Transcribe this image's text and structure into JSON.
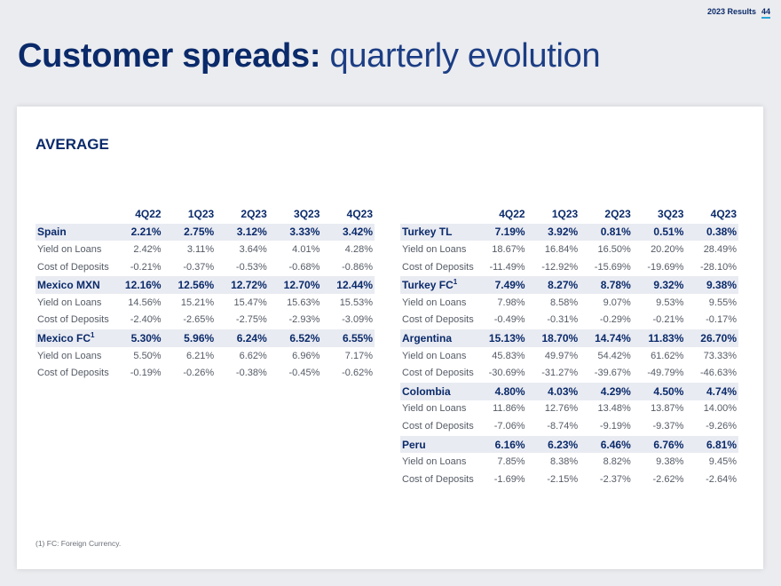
{
  "header": {
    "label": "2023 Results",
    "page": "44"
  },
  "title": {
    "bold": "Customer spreads:",
    "light": "quarterly evolution"
  },
  "section": "AVERAGE",
  "columns": [
    "4Q22",
    "1Q23",
    "2Q23",
    "3Q23",
    "4Q23"
  ],
  "left": [
    {
      "name": "Spain",
      "sup": "",
      "values": [
        "2.21%",
        "2.75%",
        "3.12%",
        "3.33%",
        "3.42%"
      ],
      "rows": [
        {
          "label": "Yield on Loans",
          "values": [
            "2.42%",
            "3.11%",
            "3.64%",
            "4.01%",
            "4.28%"
          ]
        },
        {
          "label": "Cost of Deposits",
          "values": [
            "-0.21%",
            "-0.37%",
            "-0.53%",
            "-0.68%",
            "-0.86%"
          ]
        }
      ]
    },
    {
      "name": "Mexico MXN",
      "sup": "",
      "values": [
        "12.16%",
        "12.56%",
        "12.72%",
        "12.70%",
        "12.44%"
      ],
      "rows": [
        {
          "label": "Yield on Loans",
          "values": [
            "14.56%",
            "15.21%",
            "15.47%",
            "15.63%",
            "15.53%"
          ]
        },
        {
          "label": "Cost of Deposits",
          "values": [
            "-2.40%",
            "-2.65%",
            "-2.75%",
            "-2.93%",
            "-3.09%"
          ]
        }
      ]
    },
    {
      "name": "Mexico FC",
      "sup": "1",
      "values": [
        "5.30%",
        "5.96%",
        "6.24%",
        "6.52%",
        "6.55%"
      ],
      "rows": [
        {
          "label": "Yield on Loans",
          "values": [
            "5.50%",
            "6.21%",
            "6.62%",
            "6.96%",
            "7.17%"
          ]
        },
        {
          "label": "Cost of Deposits",
          "values": [
            "-0.19%",
            "-0.26%",
            "-0.38%",
            "-0.45%",
            "-0.62%"
          ]
        }
      ]
    }
  ],
  "right": [
    {
      "name": "Turkey TL",
      "sup": "",
      "values": [
        "7.19%",
        "3.92%",
        "0.81%",
        "0.51%",
        "0.38%"
      ],
      "rows": [
        {
          "label": "Yield on Loans",
          "values": [
            "18.67%",
            "16.84%",
            "16.50%",
            "20.20%",
            "28.49%"
          ]
        },
        {
          "label": "Cost of Deposits",
          "values": [
            "-11.49%",
            "-12.92%",
            "-15.69%",
            "-19.69%",
            "-28.10%"
          ]
        }
      ]
    },
    {
      "name": "Turkey FC",
      "sup": "1",
      "values": [
        "7.49%",
        "8.27%",
        "8.78%",
        "9.32%",
        "9.38%"
      ],
      "rows": [
        {
          "label": "Yield on Loans",
          "values": [
            "7.98%",
            "8.58%",
            "9.07%",
            "9.53%",
            "9.55%"
          ]
        },
        {
          "label": "Cost of Deposits",
          "values": [
            "-0.49%",
            "-0.31%",
            "-0.29%",
            "-0.21%",
            "-0.17%"
          ]
        }
      ]
    },
    {
      "name": "Argentina",
      "sup": "",
      "values": [
        "15.13%",
        "18.70%",
        "14.74%",
        "11.83%",
        "26.70%"
      ],
      "rows": [
        {
          "label": "Yield on Loans",
          "values": [
            "45.83%",
            "49.97%",
            "54.42%",
            "61.62%",
            "73.33%"
          ]
        },
        {
          "label": "Cost of Deposits",
          "values": [
            "-30.69%",
            "-31.27%",
            "-39.67%",
            "-49.79%",
            "-46.63%"
          ]
        }
      ]
    },
    {
      "name": "Colombia",
      "sup": "",
      "values": [
        "4.80%",
        "4.03%",
        "4.29%",
        "4.50%",
        "4.74%"
      ],
      "rows": [
        {
          "label": "Yield on Loans",
          "values": [
            "11.86%",
            "12.76%",
            "13.48%",
            "13.87%",
            "14.00%"
          ]
        },
        {
          "label": "Cost of Deposits",
          "values": [
            "-7.06%",
            "-8.74%",
            "-9.19%",
            "-9.37%",
            "-9.26%"
          ]
        }
      ]
    },
    {
      "name": "Peru",
      "sup": "",
      "values": [
        "6.16%",
        "6.23%",
        "6.46%",
        "6.76%",
        "6.81%"
      ],
      "rows": [
        {
          "label": "Yield on Loans",
          "values": [
            "7.85%",
            "8.38%",
            "8.82%",
            "9.38%",
            "9.45%"
          ]
        },
        {
          "label": "Cost of Deposits",
          "values": [
            "-1.69%",
            "-2.15%",
            "-2.37%",
            "-2.62%",
            "-2.64%"
          ]
        }
      ]
    }
  ],
  "footnote": "(1) FC: Foreign Currency."
}
